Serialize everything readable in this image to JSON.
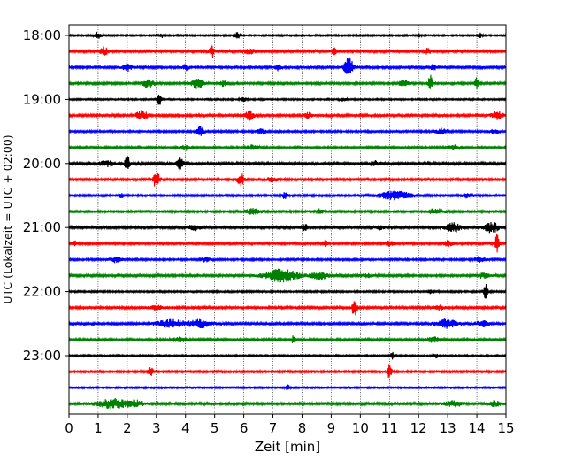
{
  "chart_data": {
    "type": "line",
    "title": "",
    "xlabel": "Zeit  [min]",
    "ylabel": "UTC (Lokalzeit = UTC + 02:00)",
    "xlim": [
      0,
      15
    ],
    "x_ticks": [
      "0",
      "1",
      "2",
      "3",
      "4",
      "5",
      "6",
      "7",
      "8",
      "9",
      "10",
      "11",
      "12",
      "13",
      "14",
      "15"
    ],
    "y_tick_labels": [
      "18:00",
      "19:00",
      "20:00",
      "21:00",
      "22:00",
      "23:00"
    ],
    "y_tick_rows": [
      0,
      4,
      8,
      12,
      16,
      20
    ],
    "grid": "vertical dotted at each minute",
    "trace_colors": [
      "#000000",
      "#ff0000",
      "#0000ff",
      "#008000"
    ],
    "start_time": "18:00",
    "minutes_per_trace": 15,
    "traces": [
      {
        "start": "18:00",
        "color": "#000000",
        "noise": 0.9,
        "events": [
          {
            "t": 1.0,
            "amp": 4,
            "w": 0.12
          },
          {
            "t": 3.2,
            "amp": 2.5,
            "w": 0.08
          },
          {
            "t": 5.8,
            "amp": 3.5,
            "w": 0.1
          },
          {
            "t": 12.0,
            "amp": 2.5,
            "w": 0.08
          },
          {
            "t": 14.1,
            "amp": 2.5,
            "w": 0.08
          }
        ]
      },
      {
        "start": "18:15",
        "color": "#ff0000",
        "noise": 1.5,
        "events": [
          {
            "t": 1.2,
            "amp": 5,
            "w": 0.12
          },
          {
            "t": 4.9,
            "amp": 7,
            "w": 0.08
          },
          {
            "t": 6.2,
            "amp": 4,
            "w": 0.15
          },
          {
            "t": 9.1,
            "amp": 3,
            "w": 0.1
          },
          {
            "t": 12.3,
            "amp": 3,
            "w": 0.1
          }
        ]
      },
      {
        "start": "18:30",
        "color": "#0000ff",
        "noise": 1.3,
        "events": [
          {
            "t": 2.0,
            "amp": 4,
            "w": 0.15
          },
          {
            "t": 4.0,
            "amp": 3,
            "w": 0.12
          },
          {
            "t": 7.2,
            "amp": 3.5,
            "w": 0.12
          },
          {
            "t": 9.6,
            "amp": 11,
            "w": 0.15
          },
          {
            "t": 12.5,
            "amp": 3,
            "w": 0.1
          }
        ]
      },
      {
        "start": "18:45",
        "color": "#008000",
        "noise": 1.2,
        "events": [
          {
            "t": 2.7,
            "amp": 5,
            "w": 0.2
          },
          {
            "t": 4.4,
            "amp": 6,
            "w": 0.2
          },
          {
            "t": 5.3,
            "amp": 3,
            "w": 0.12
          },
          {
            "t": 11.5,
            "amp": 4,
            "w": 0.15
          },
          {
            "t": 12.4,
            "amp": 9,
            "w": 0.07
          },
          {
            "t": 14.0,
            "amp": 7,
            "w": 0.07
          }
        ]
      },
      {
        "start": "19:00",
        "color": "#000000",
        "noise": 0.9,
        "events": [
          {
            "t": 3.1,
            "amp": 7,
            "w": 0.08
          },
          {
            "t": 6.0,
            "amp": 2.5,
            "w": 0.1
          },
          {
            "t": 9.4,
            "amp": 2,
            "w": 0.1
          }
        ]
      },
      {
        "start": "19:15",
        "color": "#ff0000",
        "noise": 1.3,
        "events": [
          {
            "t": 2.5,
            "amp": 5,
            "w": 0.2
          },
          {
            "t": 6.2,
            "amp": 5,
            "w": 0.15
          },
          {
            "t": 8.2,
            "amp": 3,
            "w": 0.15
          },
          {
            "t": 14.7,
            "amp": 4,
            "w": 0.2
          }
        ]
      },
      {
        "start": "19:30",
        "color": "#0000ff",
        "noise": 1.1,
        "events": [
          {
            "t": 4.5,
            "amp": 9,
            "w": 0.1
          },
          {
            "t": 6.6,
            "amp": 3,
            "w": 0.15
          },
          {
            "t": 12.8,
            "amp": 3,
            "w": 0.2
          },
          {
            "t": 14.6,
            "amp": 3,
            "w": 0.15
          }
        ]
      },
      {
        "start": "19:45",
        "color": "#008000",
        "noise": 1.1,
        "events": [
          {
            "t": 4.0,
            "amp": 3,
            "w": 0.2
          },
          {
            "t": 6.3,
            "amp": 2.5,
            "w": 0.2
          },
          {
            "t": 13.2,
            "amp": 2.5,
            "w": 0.2
          }
        ]
      },
      {
        "start": "20:00",
        "color": "#000000",
        "noise": 1.4,
        "events": [
          {
            "t": 1.3,
            "amp": 3,
            "w": 0.25
          },
          {
            "t": 2.0,
            "amp": 10,
            "w": 0.08
          },
          {
            "t": 3.8,
            "amp": 6,
            "w": 0.12
          },
          {
            "t": 10.5,
            "amp": 3,
            "w": 0.15
          }
        ]
      },
      {
        "start": "20:15",
        "color": "#ff0000",
        "noise": 1.2,
        "events": [
          {
            "t": 3.0,
            "amp": 11,
            "w": 0.1
          },
          {
            "t": 5.9,
            "amp": 7,
            "w": 0.12
          },
          {
            "t": 7.0,
            "amp": 2.5,
            "w": 0.2
          }
        ]
      },
      {
        "start": "20:30",
        "color": "#0000ff",
        "noise": 1.1,
        "events": [
          {
            "t": 1.8,
            "amp": 3,
            "w": 0.08
          },
          {
            "t": 7.4,
            "amp": 3,
            "w": 0.12
          },
          {
            "t": 11.2,
            "amp": 5,
            "w": 0.55
          },
          {
            "t": 13.7,
            "amp": 2.5,
            "w": 0.2
          }
        ]
      },
      {
        "start": "20:45",
        "color": "#008000",
        "noise": 1.1,
        "events": [
          {
            "t": 6.3,
            "amp": 3,
            "w": 0.3
          },
          {
            "t": 8.6,
            "amp": 2.5,
            "w": 0.15
          },
          {
            "t": 12.6,
            "amp": 3,
            "w": 0.3
          }
        ]
      },
      {
        "start": "21:00",
        "color": "#000000",
        "noise": 1.3,
        "events": [
          {
            "t": 4.3,
            "amp": 3,
            "w": 0.2
          },
          {
            "t": 8.1,
            "amp": 3,
            "w": 0.15
          },
          {
            "t": 10.7,
            "amp": 2.5,
            "w": 0.15
          },
          {
            "t": 13.2,
            "amp": 5,
            "w": 0.25
          },
          {
            "t": 14.5,
            "amp": 6,
            "w": 0.25
          }
        ]
      },
      {
        "start": "21:15",
        "color": "#ff0000",
        "noise": 1.2,
        "events": [
          {
            "t": 0.2,
            "amp": 3,
            "w": 0.08
          },
          {
            "t": 8.8,
            "amp": 4,
            "w": 0.08
          },
          {
            "t": 11.0,
            "amp": 3,
            "w": 0.15
          },
          {
            "t": 13.0,
            "amp": 3,
            "w": 0.15
          },
          {
            "t": 14.7,
            "amp": 12,
            "w": 0.07
          }
        ]
      },
      {
        "start": "21:30",
        "color": "#0000ff",
        "noise": 1.1,
        "events": [
          {
            "t": 1.6,
            "amp": 3,
            "w": 0.2
          },
          {
            "t": 4.7,
            "amp": 2.5,
            "w": 0.15
          },
          {
            "t": 14.1,
            "amp": 3,
            "w": 0.2
          }
        ]
      },
      {
        "start": "21:45",
        "color": "#008000",
        "noise": 1.3,
        "events": [
          {
            "t": 7.3,
            "amp": 7,
            "w": 0.55
          },
          {
            "t": 8.6,
            "amp": 4,
            "w": 0.3
          },
          {
            "t": 10.2,
            "amp": 2,
            "w": 0.2
          },
          {
            "t": 14.2,
            "amp": 2.5,
            "w": 0.2
          }
        ]
      },
      {
        "start": "22:00",
        "color": "#000000",
        "noise": 1.0,
        "events": [
          {
            "t": 12.4,
            "amp": 3,
            "w": 0.05
          },
          {
            "t": 14.3,
            "amp": 10,
            "w": 0.08
          }
        ]
      },
      {
        "start": "22:15",
        "color": "#ff0000",
        "noise": 1.3,
        "events": [
          {
            "t": 9.8,
            "amp": 11,
            "w": 0.08
          },
          {
            "t": 3.0,
            "amp": 2.5,
            "w": 0.2
          },
          {
            "t": 12.7,
            "amp": 2.5,
            "w": 0.2
          }
        ]
      },
      {
        "start": "22:30",
        "color": "#0000ff",
        "noise": 1.3,
        "events": [
          {
            "t": 3.5,
            "amp": 4,
            "w": 0.5
          },
          {
            "t": 4.5,
            "amp": 4,
            "w": 0.4
          },
          {
            "t": 13.0,
            "amp": 5,
            "w": 0.4
          },
          {
            "t": 14.2,
            "amp": 3,
            "w": 0.25
          }
        ]
      },
      {
        "start": "22:45",
        "color": "#008000",
        "noise": 1.2,
        "events": [
          {
            "t": 3.8,
            "amp": 2.5,
            "w": 0.3
          },
          {
            "t": 7.7,
            "amp": 4,
            "w": 0.06
          },
          {
            "t": 12.5,
            "amp": 3,
            "w": 0.25
          }
        ]
      },
      {
        "start": "23:00",
        "color": "#000000",
        "noise": 0.9,
        "events": [
          {
            "t": 11.1,
            "amp": 4,
            "w": 0.06
          },
          {
            "t": 12.6,
            "amp": 2.5,
            "w": 0.1
          }
        ]
      },
      {
        "start": "23:15",
        "color": "#ff0000",
        "noise": 1.1,
        "events": [
          {
            "t": 2.8,
            "amp": 5,
            "w": 0.1
          },
          {
            "t": 11.0,
            "amp": 8,
            "w": 0.08
          }
        ]
      },
      {
        "start": "23:30",
        "color": "#0000ff",
        "noise": 0.9,
        "events": [
          {
            "t": 7.5,
            "amp": 4,
            "w": 0.06
          }
        ]
      },
      {
        "start": "23:45",
        "color": "#008000",
        "noise": 1.4,
        "events": [
          {
            "t": 1.5,
            "amp": 5,
            "w": 0.5
          },
          {
            "t": 2.3,
            "amp": 3,
            "w": 0.3
          },
          {
            "t": 13.2,
            "amp": 3,
            "w": 0.3
          },
          {
            "t": 14.6,
            "amp": 3,
            "w": 0.2
          }
        ]
      }
    ]
  }
}
